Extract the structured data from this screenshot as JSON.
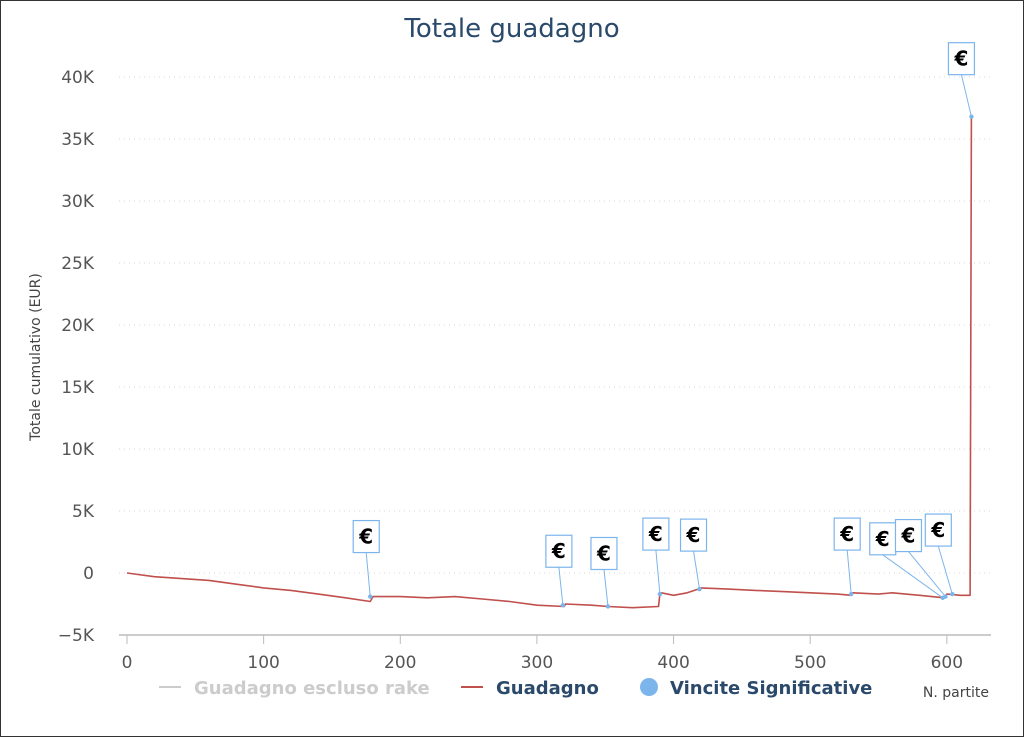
{
  "chart_data": {
    "type": "line",
    "title": "Totale guadagno",
    "xlabel": "N. partite",
    "ylabel": "Totale cumulativo (EUR)",
    "xlim": [
      0,
      625
    ],
    "ylim": [
      -5000,
      40000
    ],
    "x_ticks": [
      "0",
      "100",
      "200",
      "300",
      "400",
      "500",
      "600"
    ],
    "y_ticks": [
      "−5K",
      "0",
      "5K",
      "10K",
      "15K",
      "20K",
      "25K",
      "30K",
      "35K",
      "40K"
    ],
    "grid": true,
    "legend_position": "bottom",
    "legend": [
      {
        "label": "Guadagno escluso rake",
        "color": "#cccccc",
        "symbol": "line",
        "hidden": true
      },
      {
        "label": "Guadagno",
        "color": "#c0504d",
        "symbol": "line"
      },
      {
        "label": "Vincite Significative",
        "color": "#7cb5ec",
        "symbol": "circle"
      }
    ],
    "series": [
      {
        "name": "Guadagno",
        "color": "#c0504d",
        "x": [
          0,
          20,
          40,
          60,
          80,
          100,
          120,
          140,
          160,
          178,
          180,
          200,
          220,
          240,
          260,
          280,
          300,
          320,
          321,
          340,
          352,
          370,
          389,
          390,
          391,
          400,
          410,
          418,
          419,
          420,
          440,
          460,
          480,
          500,
          520,
          530,
          531,
          550,
          560,
          580,
          598,
          600,
          610,
          617,
          618
        ],
        "y": [
          0,
          -300,
          -450,
          -600,
          -900,
          -1200,
          -1400,
          -1700,
          -2000,
          -2300,
          -1900,
          -1900,
          -2000,
          -1900,
          -2100,
          -2300,
          -2600,
          -2700,
          -2500,
          -2600,
          -2700,
          -2800,
          -2700,
          -1700,
          -1600,
          -1800,
          -1600,
          -1300,
          -1300,
          -1200,
          -1300,
          -1400,
          -1500,
          -1600,
          -1700,
          -1800,
          -1600,
          -1700,
          -1600,
          -1800,
          -2000,
          -1700,
          -1800,
          -1800,
          36800
        ]
      }
    ],
    "flags": {
      "series": "Vincite Significative",
      "label": "€",
      "points": [
        {
          "x": 178,
          "y": -1900
        },
        {
          "x": 319,
          "y": -2600
        },
        {
          "x": 352,
          "y": -2700
        },
        {
          "x": 390,
          "y": -1700
        },
        {
          "x": 419,
          "y": -1300
        },
        {
          "x": 530,
          "y": -1700
        },
        {
          "x": 597,
          "y": -2000
        },
        {
          "x": 599,
          "y": -1900
        },
        {
          "x": 604,
          "y": -1700
        },
        {
          "x": 618,
          "y": 36800
        }
      ]
    }
  }
}
